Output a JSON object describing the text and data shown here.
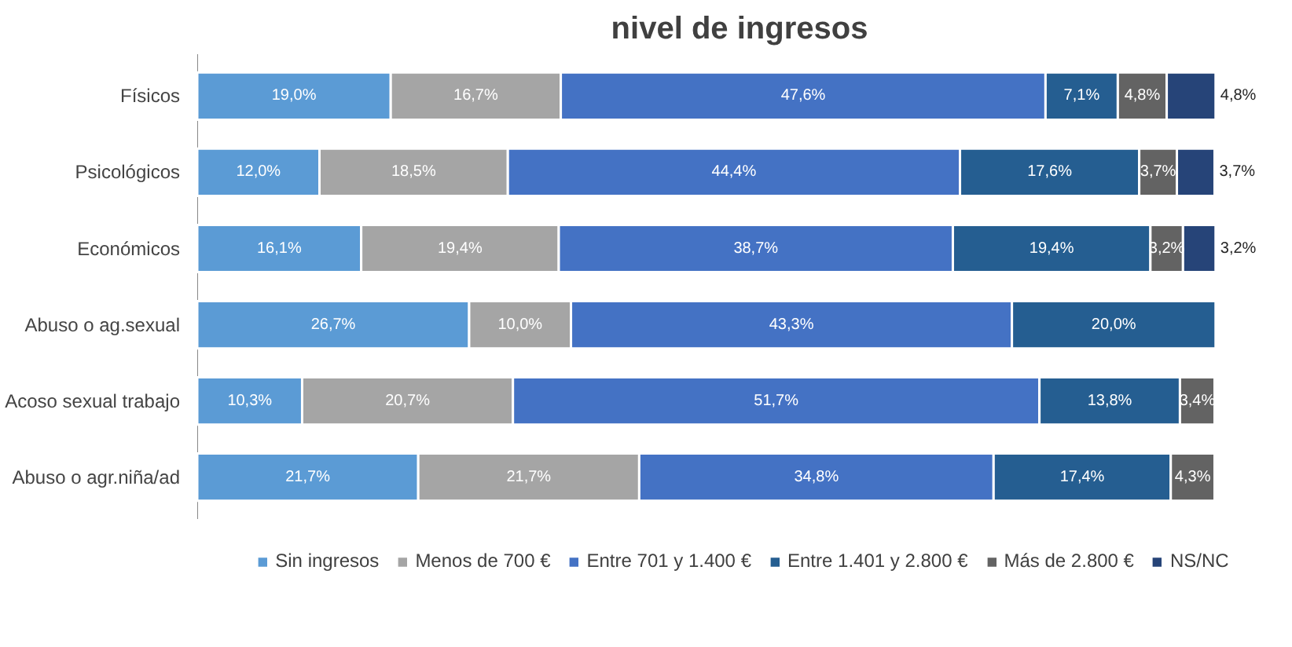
{
  "chart_data": {
    "type": "bar",
    "title": "nivel de ingresos",
    "orientation": "horizontal",
    "stacked": true,
    "legend": "bottom",
    "grid": false,
    "tick_labels": "y",
    "categories": [
      "Físicos",
      "Psicológicos",
      "Económicos",
      "Abuso o ag.sexual",
      "Acoso sexual trabajo",
      "Abuso o agr.niña/ad"
    ],
    "series": [
      {
        "name": "Sin ingresos",
        "color": "#5b9bd5",
        "values": [
          19.0,
          12.0,
          16.1,
          26.7,
          10.3,
          21.7
        ],
        "value_labels": [
          "19,0%",
          "12,0%",
          "16,1%",
          "26,7%",
          "10,3%",
          "21,7%"
        ]
      },
      {
        "name": "Menos de 700 €",
        "color": "#a5a5a5",
        "values": [
          16.7,
          18.5,
          19.4,
          10.0,
          20.7,
          21.7
        ],
        "value_labels": [
          "16,7%",
          "18,5%",
          "19,4%",
          "10,0%",
          "20,7%",
          "21,7%"
        ]
      },
      {
        "name": "Entre 701 y 1.400 €",
        "color": "#4472c4",
        "values": [
          47.6,
          44.4,
          38.7,
          43.3,
          51.7,
          34.8
        ],
        "value_labels": [
          "47,6%",
          "44,4%",
          "38,7%",
          "43,3%",
          "51,7%",
          "34,8%"
        ]
      },
      {
        "name": "Entre 1.401 y 2.800 €",
        "color": "#255e91",
        "values": [
          7.1,
          17.6,
          19.4,
          20.0,
          13.8,
          17.4
        ],
        "value_labels": [
          "7,1%",
          "17,6%",
          "19,4%",
          "20,0%",
          "13,8%",
          "17,4%"
        ]
      },
      {
        "name": "Más de 2.800 €",
        "color": "#636363",
        "values": [
          4.8,
          3.7,
          3.2,
          null,
          3.4,
          4.3
        ],
        "value_labels": [
          "4,8%",
          "3,7%",
          "3,2%",
          null,
          "3,4%",
          "4,3%"
        ]
      },
      {
        "name": "NS/NC",
        "color": "#264478",
        "values": [
          4.8,
          3.7,
          3.2,
          null,
          null,
          null
        ],
        "value_labels": [
          "4,8%",
          "3,7%",
          "3,2%",
          null,
          null,
          null
        ]
      }
    ]
  }
}
